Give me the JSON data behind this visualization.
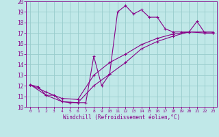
{
  "xlabel": "Windchill (Refroidissement éolien,°C)",
  "bg_color": "#c0e8e8",
  "grid_color": "#98cccc",
  "line_color": "#880088",
  "xlim": [
    -0.5,
    23.5
  ],
  "ylim": [
    10,
    20
  ],
  "xticks": [
    0,
    1,
    2,
    3,
    4,
    5,
    6,
    7,
    8,
    9,
    10,
    11,
    12,
    13,
    14,
    15,
    16,
    17,
    18,
    19,
    20,
    21,
    22,
    23
  ],
  "yticks": [
    10,
    11,
    12,
    13,
    14,
    15,
    16,
    17,
    18,
    19,
    20
  ],
  "line1_x": [
    0,
    1,
    2,
    3,
    4,
    5,
    6,
    7,
    8,
    9,
    10,
    11,
    12,
    13,
    14,
    15,
    16,
    17,
    18,
    19,
    20,
    21,
    22,
    23
  ],
  "line1_y": [
    12.1,
    11.9,
    11.1,
    11.1,
    10.5,
    10.4,
    10.4,
    10.4,
    14.8,
    12.0,
    13.1,
    19.0,
    19.6,
    18.8,
    19.2,
    18.5,
    18.5,
    17.4,
    17.1,
    17.1,
    17.1,
    18.1,
    17.0,
    17.0
  ],
  "line2_x": [
    0,
    2,
    4,
    6,
    8,
    10,
    12,
    14,
    16,
    18,
    20,
    22,
    23
  ],
  "line2_y": [
    12.1,
    11.1,
    10.5,
    10.4,
    12.0,
    13.1,
    14.2,
    15.5,
    16.2,
    16.7,
    17.1,
    17.0,
    17.0
  ],
  "line3_x": [
    0,
    2,
    4,
    6,
    8,
    10,
    12,
    14,
    16,
    18,
    20,
    22,
    23
  ],
  "line3_y": [
    12.1,
    11.4,
    10.8,
    10.7,
    13.0,
    14.2,
    15.0,
    15.9,
    16.5,
    16.9,
    17.1,
    17.1,
    17.1
  ]
}
